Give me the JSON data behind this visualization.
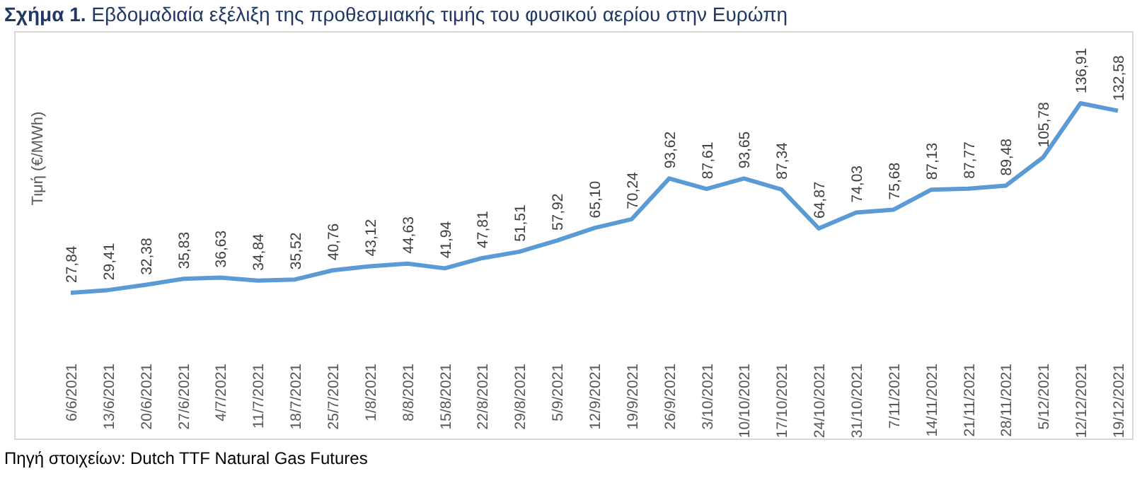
{
  "chart_data": {
    "type": "line",
    "title": "Σχήμα 1. Εβδομαδιαία εξέλιξη της προθεσμιακής τιμής του φυσικού αερίου στην Ευρώπη",
    "ylabel": "Τιμή (€/MWh)",
    "categories": [
      "6/6/2021",
      "13/6/2021",
      "20/6/2021",
      "27/6/2021",
      "4/7/2021",
      "11/7/2021",
      "18/7/2021",
      "25/7/2021",
      "1/8/2021",
      "8/8/2021",
      "15/8/2021",
      "22/8/2021",
      "29/8/2021",
      "5/9/2021",
      "12/9/2021",
      "19/9/2021",
      "26/9/2021",
      "3/10/2021",
      "10/10/2021",
      "17/10/2021",
      "24/10/2021",
      "31/10/2021",
      "7/11/2021",
      "14/11/2021",
      "21/11/2021",
      "28/11/2021",
      "5/12/2021",
      "12/12/2021",
      "19/12/2021"
    ],
    "values": [
      27.84,
      29.41,
      32.38,
      35.83,
      36.63,
      34.84,
      35.52,
      40.76,
      43.12,
      44.63,
      41.94,
      47.81,
      51.51,
      57.92,
      65.1,
      70.24,
      93.62,
      87.61,
      93.65,
      87.34,
      64.87,
      74.03,
      75.68,
      87.13,
      87.77,
      89.48,
      105.78,
      136.91,
      132.58
    ],
    "value_labels": [
      "27,84",
      "29,41",
      "32,38",
      "35,83",
      "36,63",
      "34,84",
      "35,52",
      "40,76",
      "43,12",
      "44,63",
      "41,94",
      "47,81",
      "51,51",
      "57,92",
      "65,10",
      "70,24",
      "93,62",
      "87,61",
      "93,65",
      "87,34",
      "64,87",
      "74,03",
      "75,68",
      "87,13",
      "87,77",
      "89,48",
      "105,78",
      "136,91",
      "132,58"
    ],
    "color": "#5b9bd5",
    "line_style": "solid",
    "marker": "none",
    "annotations": [
      "Πηγή στοιχείων: Dutch TTF Natural Gas Futures"
    ]
  }
}
